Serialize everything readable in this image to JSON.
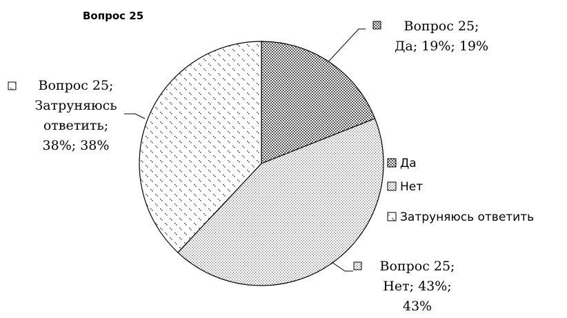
{
  "chart_data": {
    "type": "pie",
    "title": "Вопрос 25",
    "categories": [
      "Да",
      "Нет",
      "Затруняюсь ответить"
    ],
    "values": [
      19,
      43,
      38
    ],
    "value_labels": [
      "Вопрос 25;\nДа; 19%; 19%",
      "Вопрос 25;\nНет; 43%;\n43%",
      "Вопрос 25;\nЗатруняюсь\nответить;\n38%; 38%"
    ],
    "colors": [
      "#555555",
      "#666666",
      "#555555"
    ],
    "legend": "right"
  }
}
